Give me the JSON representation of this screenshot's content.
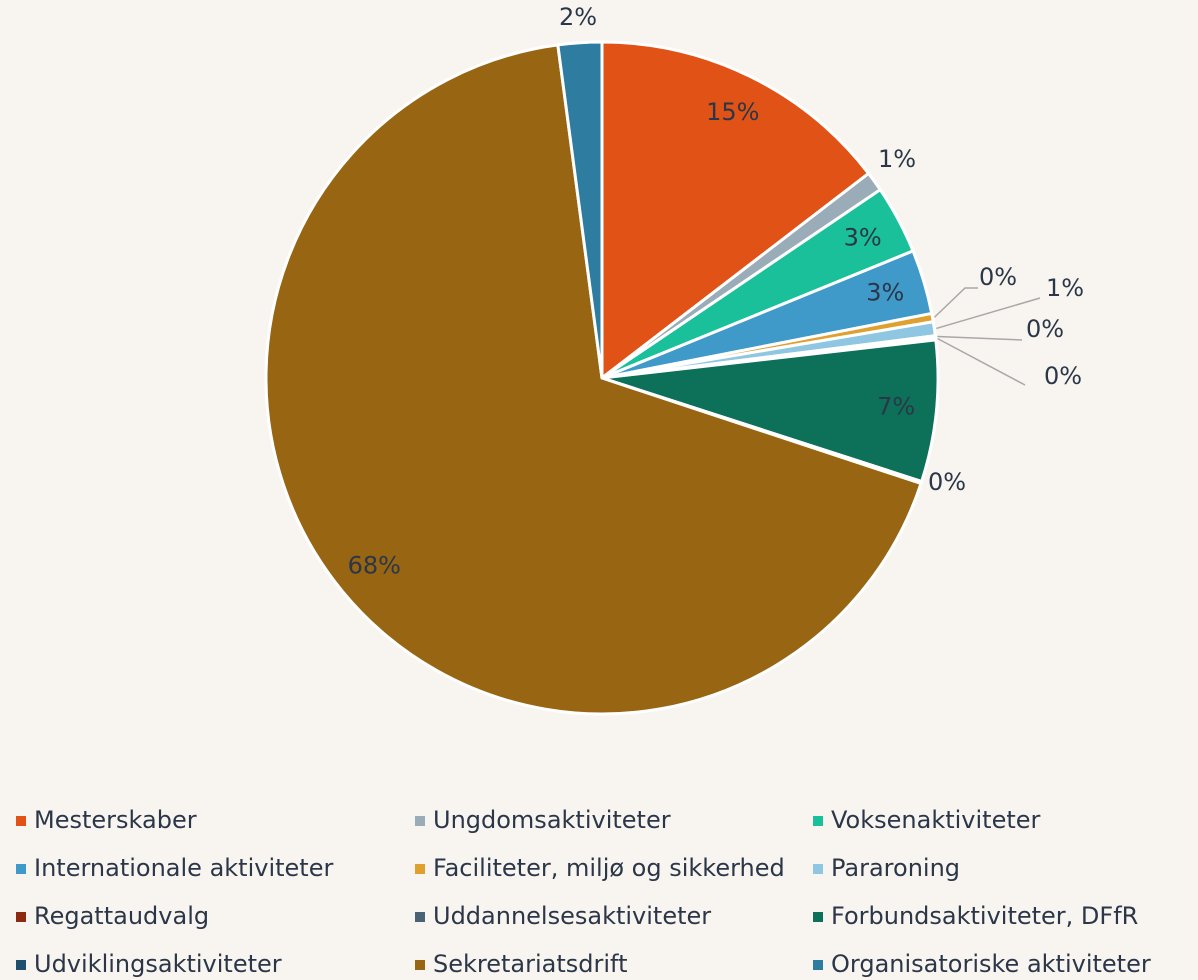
{
  "chart_data": {
    "type": "pie",
    "categories": [
      "Mesterskaber",
      "Ungdomsaktiviteter",
      "Voksenaktiviteter",
      "Internationale aktiviteter",
      "Faciliteter, miljø og sikkerhed",
      "Pararoning",
      "Regattaudvalg",
      "Uddannelsesaktiviteter",
      "Forbundsaktiviteter, DFfR",
      "Udviklingsaktiviteter",
      "Sekretariatsdrift",
      "Organisatoriske aktiviteter"
    ],
    "values": [
      14.6,
      0.95,
      3.3,
      3.1,
      0.4,
      0.67,
      0.1,
      0.1,
      6.8,
      0.1,
      67.9,
      2.1
    ],
    "value_labels": [
      "15%",
      "1%",
      "3%",
      "3%",
      "0%",
      "1%",
      "0%",
      "0%",
      "7%",
      "0%",
      "68%",
      "2%"
    ],
    "colors": [
      "#e05215",
      "#9aacb8",
      "#19c09a",
      "#3f9ac9",
      "#e0a030",
      "#8fc7e3",
      "#8b2a10",
      "#4a6273",
      "#0d7058",
      "#1f4f6e",
      "#986512",
      "#2e7da0"
    ],
    "legend": "bottom"
  }
}
